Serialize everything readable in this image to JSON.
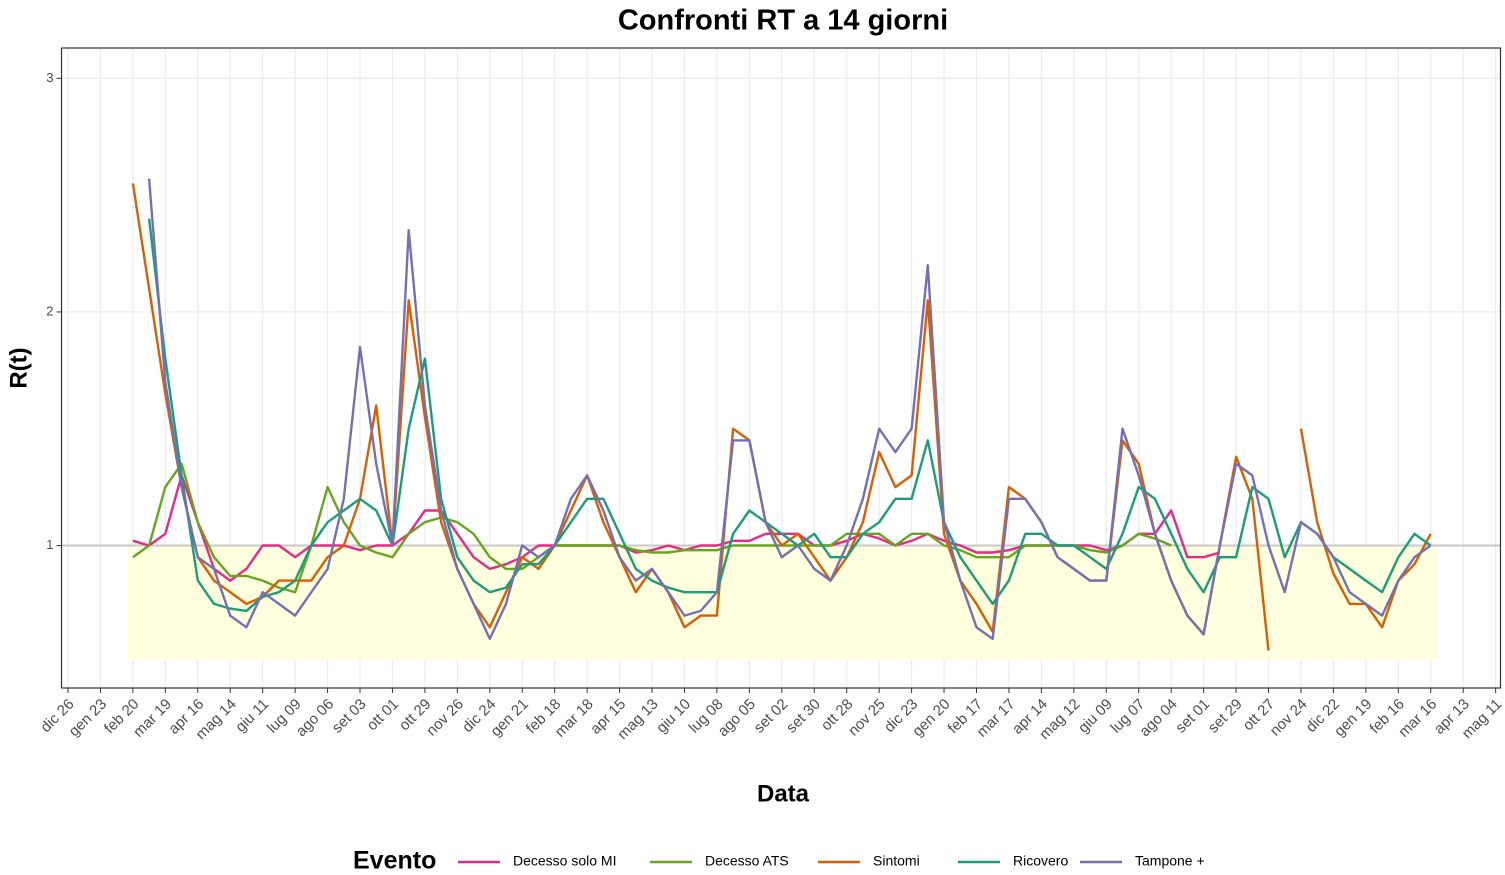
{
  "chart_data": {
    "type": "line",
    "title": "Confronti RT a 14 giorni",
    "x_label": "Data",
    "y_label": "R(t)",
    "legend_title": "Evento",
    "xlim": [
      -0.2,
      44.15
    ],
    "ylim": [
      0.39,
      3.13
    ],
    "yticks": [
      1,
      2,
      3
    ],
    "xticks": [
      {
        "value": 0,
        "label": "dic 26"
      },
      {
        "value": 1,
        "label": "gen 23"
      },
      {
        "value": 2,
        "label": "feb 20"
      },
      {
        "value": 3,
        "label": "mar 19"
      },
      {
        "value": 4,
        "label": "apr 16"
      },
      {
        "value": 5,
        "label": "mag 14"
      },
      {
        "value": 6,
        "label": "giu 11"
      },
      {
        "value": 7,
        "label": "lug 09"
      },
      {
        "value": 8,
        "label": "ago 06"
      },
      {
        "value": 9,
        "label": "set 03"
      },
      {
        "value": 10,
        "label": "ott 01"
      },
      {
        "value": 11,
        "label": "ott 29"
      },
      {
        "value": 12,
        "label": "nov 26"
      },
      {
        "value": 13,
        "label": "dic 24"
      },
      {
        "value": 14,
        "label": "gen 21"
      },
      {
        "value": 15,
        "label": "feb 18"
      },
      {
        "value": 16,
        "label": "mar 18"
      },
      {
        "value": 17,
        "label": "apr 15"
      },
      {
        "value": 18,
        "label": "mag 13"
      },
      {
        "value": 19,
        "label": "giu 10"
      },
      {
        "value": 20,
        "label": "lug 08"
      },
      {
        "value": 21,
        "label": "ago 05"
      },
      {
        "value": 22,
        "label": "set 02"
      },
      {
        "value": 23,
        "label": "set 30"
      },
      {
        "value": 24,
        "label": "ott 28"
      },
      {
        "value": 25,
        "label": "nov 25"
      },
      {
        "value": 26,
        "label": "dic 23"
      },
      {
        "value": 27,
        "label": "gen 20"
      },
      {
        "value": 28,
        "label": "feb 17"
      },
      {
        "value": 29,
        "label": "mar 17"
      },
      {
        "value": 30,
        "label": "apr 14"
      },
      {
        "value": 31,
        "label": "mag 12"
      },
      {
        "value": 32,
        "label": "giu 09"
      },
      {
        "value": 33,
        "label": "lug 07"
      },
      {
        "value": 34,
        "label": "ago 04"
      },
      {
        "value": 35,
        "label": "set 01"
      },
      {
        "value": 36,
        "label": "set 29"
      },
      {
        "value": 37,
        "label": "ott 27"
      },
      {
        "value": 38,
        "label": "nov 24"
      },
      {
        "value": 39,
        "label": "dic 22"
      },
      {
        "value": 40,
        "label": "gen 19"
      },
      {
        "value": 41,
        "label": "feb 16"
      },
      {
        "value": 42,
        "label": "mar 16"
      },
      {
        "value": 43,
        "label": "apr 13"
      },
      {
        "value": 44,
        "label": "mag 11"
      }
    ],
    "grid": true,
    "hline": {
      "value": 1,
      "color": "#c8c8c8"
    },
    "shade": {
      "xlim": [
        1.82,
        42.2
      ],
      "ylim": [
        0.51,
        1
      ],
      "color": "#ffffe0"
    },
    "legend": "bottom",
    "x": [
      2,
      2.5,
      3,
      3.5,
      4,
      4.5,
      5,
      5.5,
      6,
      6.5,
      7,
      7.5,
      8,
      8.5,
      9,
      9.5,
      10,
      10.5,
      11,
      11.5,
      12,
      12.5,
      13,
      13.5,
      14,
      14.5,
      15,
      15.5,
      16,
      16.5,
      17,
      17.5,
      18,
      18.5,
      19,
      19.5,
      20,
      20.5,
      21,
      21.5,
      22,
      22.5,
      23,
      23.5,
      24,
      24.5,
      25,
      25.5,
      26,
      26.5,
      27,
      27.5,
      28,
      28.5,
      29,
      29.5,
      30,
      30.5,
      31,
      31.5,
      32,
      32.5,
      33,
      33.5,
      34,
      34.5,
      35,
      35.5,
      36,
      36.5,
      37,
      37.5,
      38,
      38.5,
      39,
      39.5,
      40,
      40.5,
      41,
      41.5,
      42
    ],
    "series": [
      {
        "name": "Decesso solo MI",
        "color": "#e7298a",
        "values": [
          1.02,
          1.0,
          1.05,
          1.3,
          1.1,
          0.9,
          0.85,
          0.9,
          1.0,
          1.0,
          0.95,
          1.0,
          1.0,
          1.0,
          0.98,
          1.0,
          1.0,
          1.05,
          1.15,
          1.15,
          1.05,
          0.95,
          0.9,
          0.92,
          0.95,
          1.0,
          1.0,
          1.0,
          1.0,
          1.0,
          1.0,
          0.97,
          0.98,
          1.0,
          0.98,
          1.0,
          1.0,
          1.02,
          1.02,
          1.05,
          1.05,
          1.05,
          1.0,
          1.0,
          1.02,
          1.05,
          1.03,
          1.0,
          1.02,
          1.05,
          1.02,
          1.0,
          0.97,
          0.97,
          0.98,
          1.0,
          1.0,
          1.0,
          1.0,
          1.0,
          0.98,
          1.0,
          1.05,
          1.05,
          1.15,
          0.95,
          0.95,
          0.97,
          null,
          null,
          null,
          null,
          null,
          null,
          null,
          null,
          null,
          null,
          null,
          null,
          null
        ]
      },
      {
        "name": "Decesso ATS",
        "color": "#66a61e",
        "values": [
          0.95,
          1.0,
          1.25,
          1.35,
          1.1,
          0.95,
          0.87,
          0.87,
          0.85,
          0.82,
          0.8,
          1.0,
          1.25,
          1.1,
          1.0,
          0.97,
          0.95,
          1.05,
          1.1,
          1.12,
          1.1,
          1.05,
          0.95,
          0.9,
          0.9,
          0.95,
          1.0,
          1.0,
          1.0,
          1.0,
          1.0,
          0.98,
          0.97,
          0.97,
          0.98,
          0.98,
          0.98,
          1.0,
          1.0,
          1.0,
          1.0,
          1.0,
          1.0,
          1.0,
          1.05,
          1.05,
          1.05,
          1.0,
          1.05,
          1.05,
          1.0,
          0.98,
          0.95,
          0.95,
          0.95,
          1.0,
          1.0,
          1.0,
          1.0,
          0.98,
          0.97,
          1.0,
          1.05,
          1.03,
          1.0,
          null,
          null,
          null,
          null,
          null,
          null,
          null,
          null,
          null,
          null,
          null,
          null,
          null,
          null,
          null,
          null
        ]
      },
      {
        "name": "Sintomi",
        "color": "#d95f02",
        "values": [
          2.55,
          2.1,
          1.65,
          1.25,
          0.95,
          0.85,
          0.8,
          0.75,
          0.78,
          0.85,
          0.85,
          0.85,
          0.95,
          1.0,
          1.2,
          1.6,
          1.0,
          2.05,
          1.55,
          1.1,
          0.9,
          0.75,
          0.65,
          0.8,
          0.95,
          0.9,
          1.0,
          1.15,
          1.3,
          1.1,
          0.95,
          0.8,
          0.9,
          0.8,
          0.65,
          0.7,
          0.7,
          1.5,
          1.45,
          1.1,
          1.0,
          1.05,
          0.95,
          0.85,
          0.95,
          1.1,
          1.4,
          1.25,
          1.3,
          2.05,
          1.05,
          0.85,
          0.75,
          0.63,
          1.25,
          1.2,
          1.1,
          0.95,
          0.9,
          0.85,
          0.85,
          1.45,
          1.35,
          1.05,
          0.85,
          0.7,
          0.62,
          1.0,
          1.38,
          1.2,
          0.55,
          null,
          1.5,
          1.1,
          0.88,
          0.75,
          0.75,
          0.65,
          0.85,
          0.92,
          1.05
        ]
      },
      {
        "name": "Ricovero",
        "color": "#1b9e77",
        "values": [
          null,
          2.4,
          1.8,
          1.3,
          0.85,
          0.75,
          0.73,
          0.72,
          0.78,
          0.8,
          0.85,
          1.0,
          1.1,
          1.15,
          1.2,
          1.15,
          1.0,
          1.5,
          1.8,
          1.2,
          0.95,
          0.85,
          0.8,
          0.82,
          0.92,
          0.92,
          1.0,
          1.1,
          1.2,
          1.2,
          1.05,
          0.9,
          0.85,
          0.82,
          0.8,
          0.8,
          0.8,
          1.05,
          1.15,
          1.1,
          1.05,
          1.0,
          1.05,
          0.95,
          0.95,
          1.05,
          1.1,
          1.2,
          1.2,
          1.45,
          1.1,
          0.95,
          0.85,
          0.75,
          0.85,
          1.05,
          1.05,
          1.0,
          1.0,
          0.95,
          0.9,
          1.05,
          1.25,
          1.2,
          1.05,
          0.9,
          0.8,
          0.95,
          0.95,
          1.25,
          1.2,
          0.95,
          1.1,
          1.05,
          0.95,
          0.9,
          0.85,
          0.8,
          0.95,
          1.05,
          1.0
        ]
      },
      {
        "name": "Tampone +",
        "color": "#7570b3",
        "values": [
          null,
          2.57,
          1.7,
          1.25,
          0.95,
          0.9,
          0.7,
          0.65,
          0.8,
          0.75,
          0.7,
          0.8,
          0.9,
          1.2,
          1.85,
          1.35,
          1.0,
          2.35,
          1.6,
          1.15,
          0.9,
          0.75,
          0.6,
          0.75,
          1.0,
          0.95,
          1.0,
          1.2,
          1.3,
          1.15,
          0.95,
          0.85,
          0.9,
          0.8,
          0.7,
          0.72,
          0.8,
          1.45,
          1.45,
          1.1,
          0.95,
          1.0,
          0.9,
          0.85,
          1.0,
          1.2,
          1.5,
          1.4,
          1.5,
          2.2,
          1.1,
          0.85,
          0.65,
          0.6,
          1.2,
          1.2,
          1.1,
          0.95,
          0.9,
          0.85,
          0.85,
          1.5,
          1.3,
          1.05,
          0.85,
          0.7,
          0.62,
          1.0,
          1.35,
          1.3,
          1.0,
          0.8,
          1.1,
          1.05,
          0.95,
          0.8,
          0.75,
          0.7,
          0.85,
          0.95,
          1.0
        ]
      }
    ]
  }
}
